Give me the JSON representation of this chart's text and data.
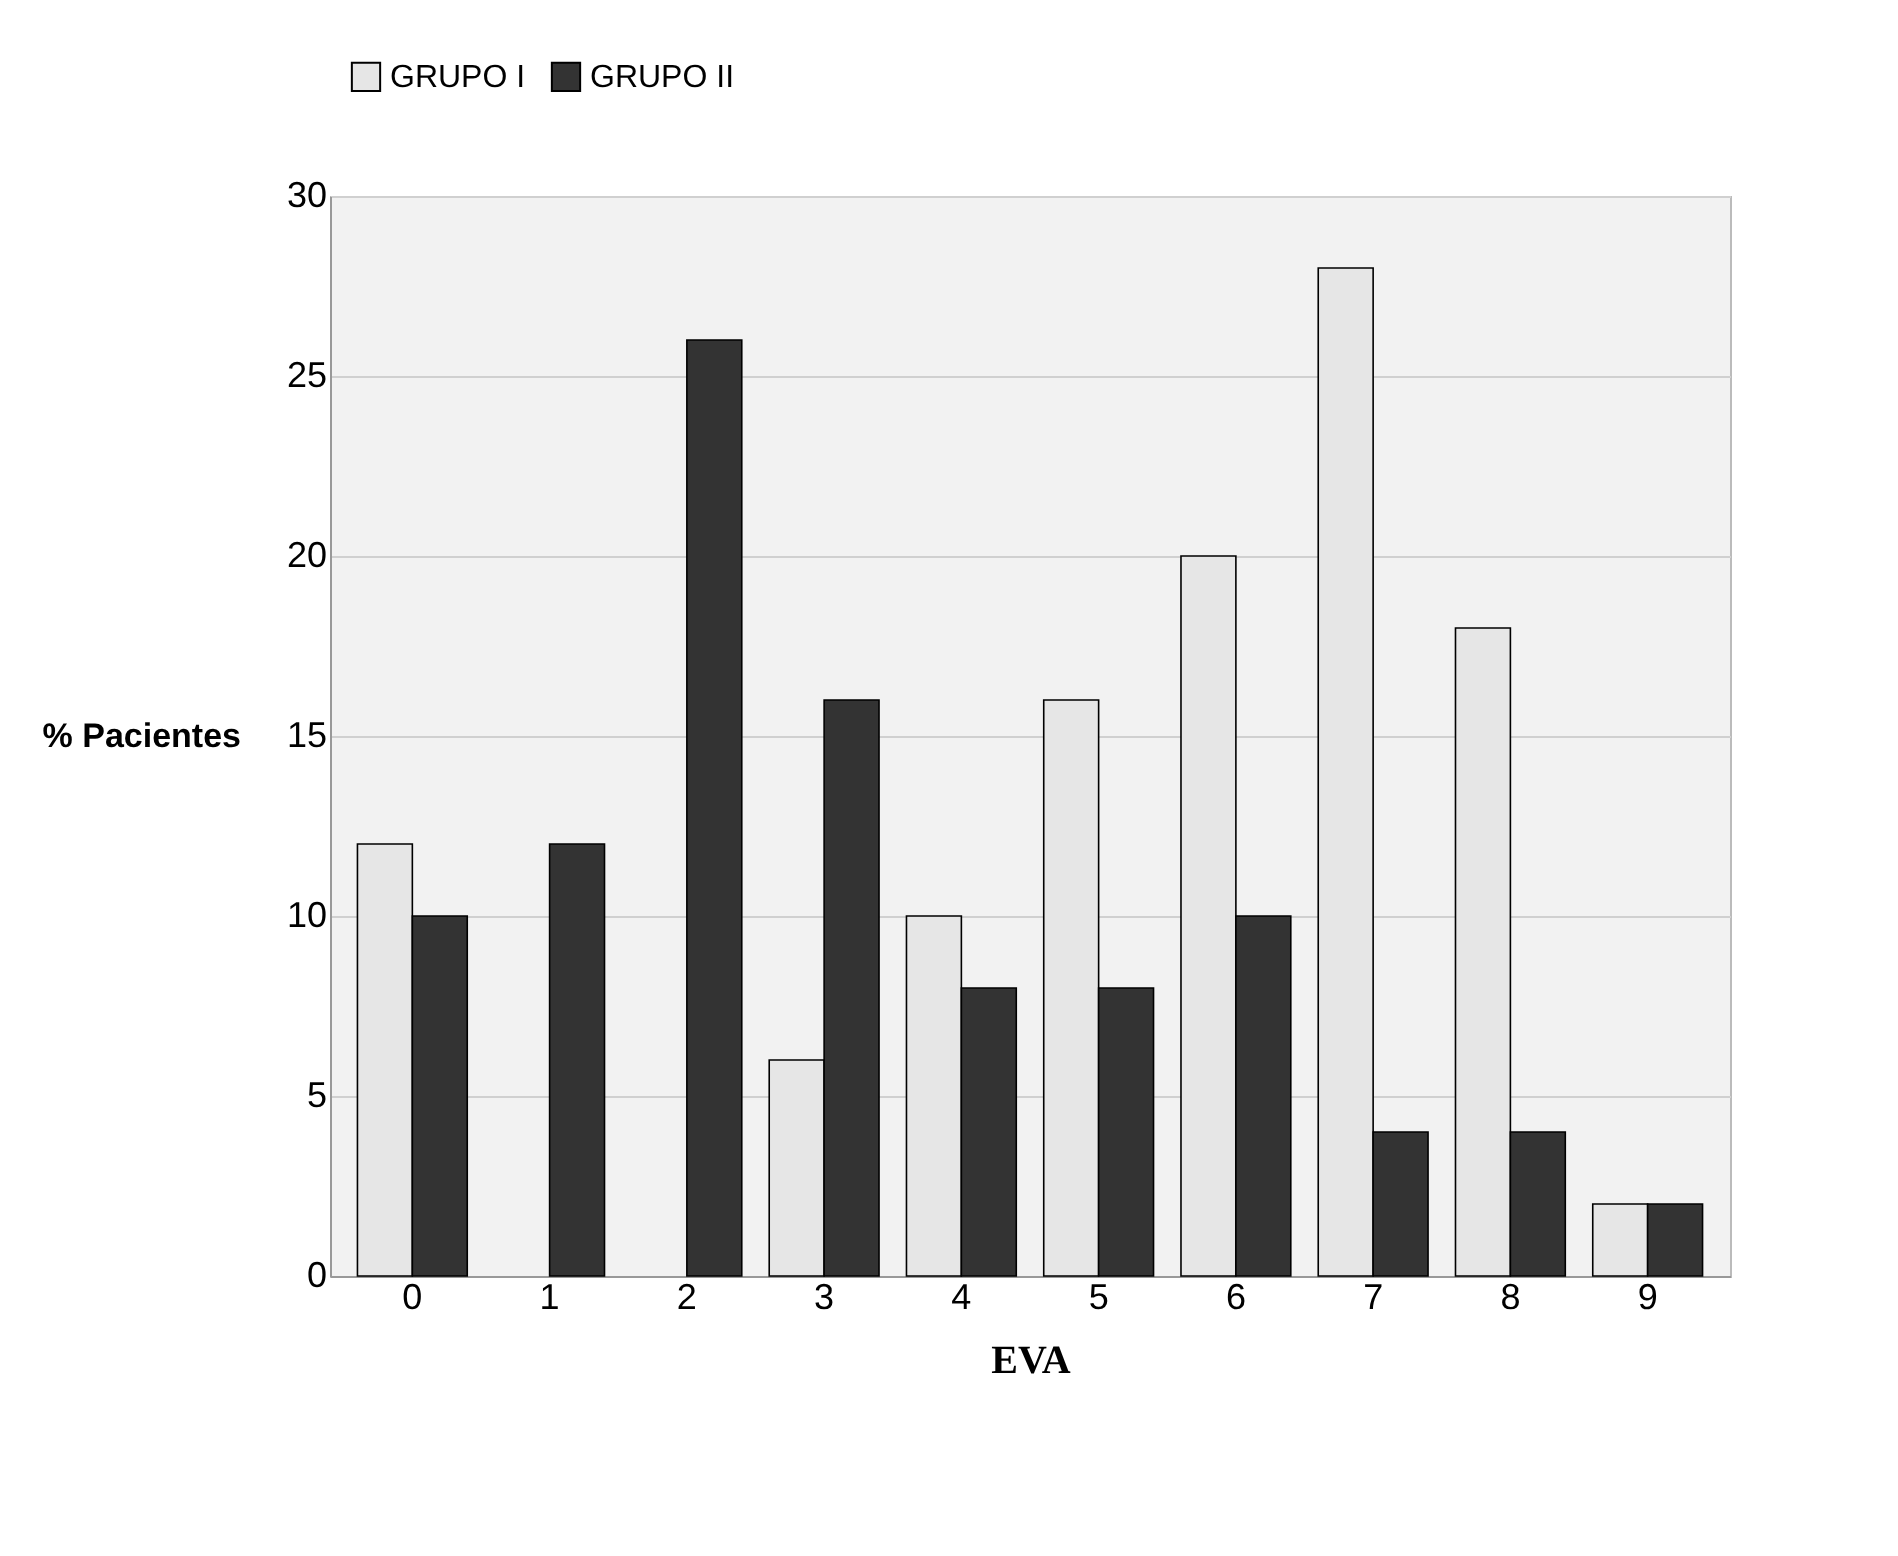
{
  "chart_data": {
    "type": "bar",
    "xlabel": "EVA",
    "ylabel": "% Pacientes",
    "categories": [
      "0",
      "1",
      "2",
      "3",
      "4",
      "5",
      "6",
      "7",
      "8",
      "9"
    ],
    "series": [
      {
        "name": "GRUPO I",
        "color": "#e6e6e6",
        "values": [
          12,
          0,
          0,
          6,
          10,
          16,
          20,
          28,
          18,
          2
        ]
      },
      {
        "name": "GRUPO II",
        "color": "#333333",
        "values": [
          10,
          12,
          26,
          16,
          8,
          8,
          10,
          4,
          4,
          2
        ]
      }
    ],
    "ylim": [
      0,
      30
    ],
    "yticks": [
      0,
      5,
      10,
      15,
      20,
      25,
      30
    ],
    "grid": "y",
    "legend": "top"
  }
}
